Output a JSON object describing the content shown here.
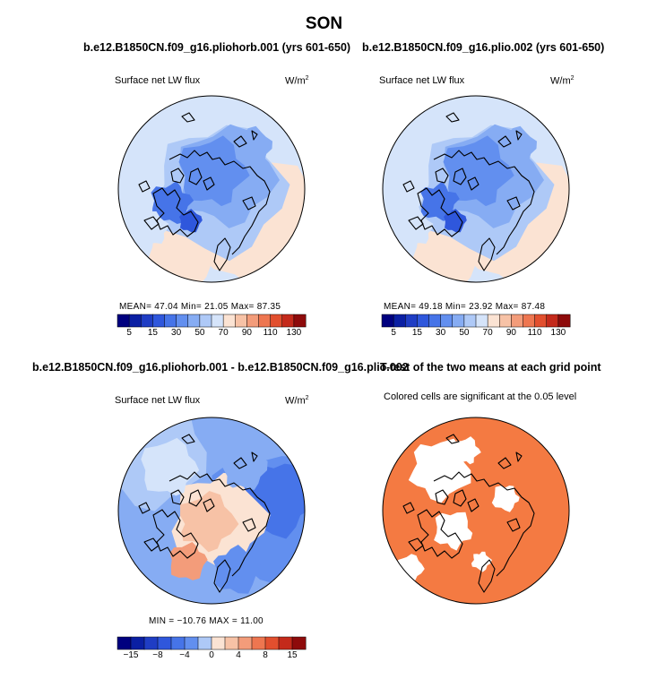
{
  "figure": {
    "title": "SON"
  },
  "panels": [
    {
      "id": "a",
      "title": "b.e12.B1850CN.f09_g16.pliohorb.001 (yrs 601-650)",
      "variable": "Surface net LW flux",
      "units": "W/m",
      "units_exp": "2",
      "stats": "MEAN=  47.04   Min=  21.05   Max=  87.35"
    },
    {
      "id": "b",
      "title": "b.e12.B1850CN.f09_g16.plio.002 (yrs 601-650)",
      "variable": "Surface net LW flux",
      "units": "W/m",
      "units_exp": "2",
      "stats": "MEAN=  49.18   Min=  23.92   Max=  87.48"
    },
    {
      "id": "c",
      "title": "b.e12.B1850CN.f09_g16.pliohorb.001 - b.e12.B1850CN.f09_g16.plio.002",
      "variable": "Surface net LW flux",
      "units": "W/m",
      "units_exp": "2",
      "stats": "MIN = −10.76  MAX =  11.00"
    },
    {
      "id": "d",
      "title": "T-test of the two means at each grid point",
      "variable": "Colored cells are significant at the 0.05 level"
    }
  ],
  "chart_data": [
    {
      "type": "heatmap",
      "title": "b.e12.B1850CN.f09_g16.pliohorb.001 (yrs 601-650)",
      "subtitle": "Surface net LW flux (W/m2), SON",
      "stats": {
        "mean": 47.04,
        "min": 21.05,
        "max": 87.35
      },
      "colorbar": {
        "levels": [
          5,
          10,
          15,
          20,
          30,
          40,
          50,
          60,
          70,
          80,
          90,
          100,
          110,
          120,
          130
        ],
        "tick_labels": [
          "5",
          "15",
          "30",
          "50",
          "70",
          "90",
          "110",
          "130"
        ],
        "colors": [
          "#00007f",
          "#0a1fa3",
          "#1f3dc4",
          "#2f57dc",
          "#4674e8",
          "#628fef",
          "#86acf3",
          "#aec9f7",
          "#d5e4fa",
          "#fbe3d3",
          "#f7c2a6",
          "#f39c7a",
          "#ee7650",
          "#e24f2e",
          "#c42a1b",
          "#8e0b0b"
        ]
      }
    },
    {
      "type": "heatmap",
      "title": "b.e12.B1850CN.f09_g16.plio.002 (yrs 601-650)",
      "subtitle": "Surface net LW flux (W/m2), SON",
      "stats": {
        "mean": 49.18,
        "min": 23.92,
        "max": 87.48
      },
      "colorbar": {
        "levels": [
          5,
          10,
          15,
          20,
          30,
          40,
          50,
          60,
          70,
          80,
          90,
          100,
          110,
          120,
          130
        ],
        "tick_labels": [
          "5",
          "15",
          "30",
          "50",
          "70",
          "90",
          "110",
          "130"
        ],
        "colors": [
          "#00007f",
          "#0a1fa3",
          "#1f3dc4",
          "#2f57dc",
          "#4674e8",
          "#628fef",
          "#86acf3",
          "#aec9f7",
          "#d5e4fa",
          "#fbe3d3",
          "#f7c2a6",
          "#f39c7a",
          "#ee7650",
          "#e24f2e",
          "#c42a1b",
          "#8e0b0b"
        ]
      }
    },
    {
      "type": "heatmap",
      "title": "b.e12.B1850CN.f09_g16.pliohorb.001 - b.e12.B1850CN.f09_g16.plio.002",
      "subtitle": "Surface net LW flux (W/m2) difference",
      "stats": {
        "min": -10.76,
        "max": 11.0
      },
      "colorbar": {
        "levels": [
          -15,
          -12,
          -8,
          -6,
          -4,
          -2,
          0,
          2,
          4,
          6,
          8,
          12,
          15
        ],
        "tick_labels": [
          "−15",
          "−8",
          "−4",
          "0",
          "4",
          "8",
          "15"
        ],
        "colors": [
          "#00007f",
          "#0a1fa3",
          "#1f3dc4",
          "#2f57dc",
          "#4674e8",
          "#628fef",
          "#aec9f7",
          "#fbe3d3",
          "#f7c2a6",
          "#f39c7a",
          "#ee7650",
          "#e24f2e",
          "#c42a1b",
          "#8e0b0b"
        ]
      }
    },
    {
      "type": "heatmap",
      "title": "T-test of the two means at each grid point",
      "subtitle": "Colored cells are significant at the 0.05 level",
      "significant_color": "#f47a42"
    }
  ]
}
